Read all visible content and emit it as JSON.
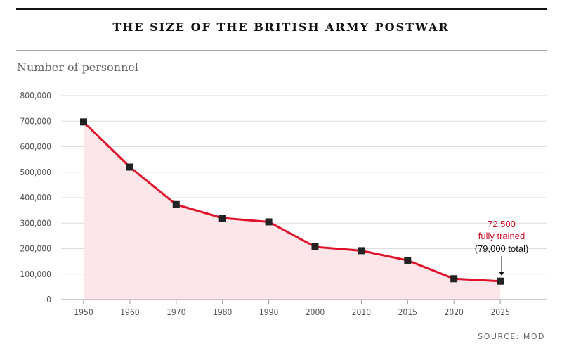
{
  "chart_data": {
    "type": "line",
    "title": "THE SIZE OF THE BRITISH ARMY POSTWAR",
    "ylabel": "Number of personnel",
    "source": "SOURCE: MOD",
    "x": [
      "1950",
      "1960",
      "1970",
      "1980",
      "1990",
      "2000",
      "2010",
      "2015",
      "2020",
      "2025"
    ],
    "series": [
      {
        "values": [
          697000,
          520000,
          373000,
          320000,
          305000,
          207000,
          192000,
          154000,
          82000,
          72500
        ]
      }
    ],
    "ylim": [
      0,
      800000
    ],
    "yticks": [
      "0",
      "100,000",
      "200,000",
      "300,000",
      "400,000",
      "500,000",
      "600,000",
      "700,000",
      "800,000"
    ],
    "ytick_values": [
      0,
      100000,
      200000,
      300000,
      400000,
      500000,
      600000,
      700000,
      800000
    ],
    "grid": true,
    "annotation": {
      "line1": "72,500",
      "line2": "fully trained",
      "line3": "(79,000 total)"
    },
    "colors": {
      "line": "#e0112b",
      "area": "#fde6ea",
      "marker": "#222222",
      "grid": "#dddddd"
    }
  }
}
